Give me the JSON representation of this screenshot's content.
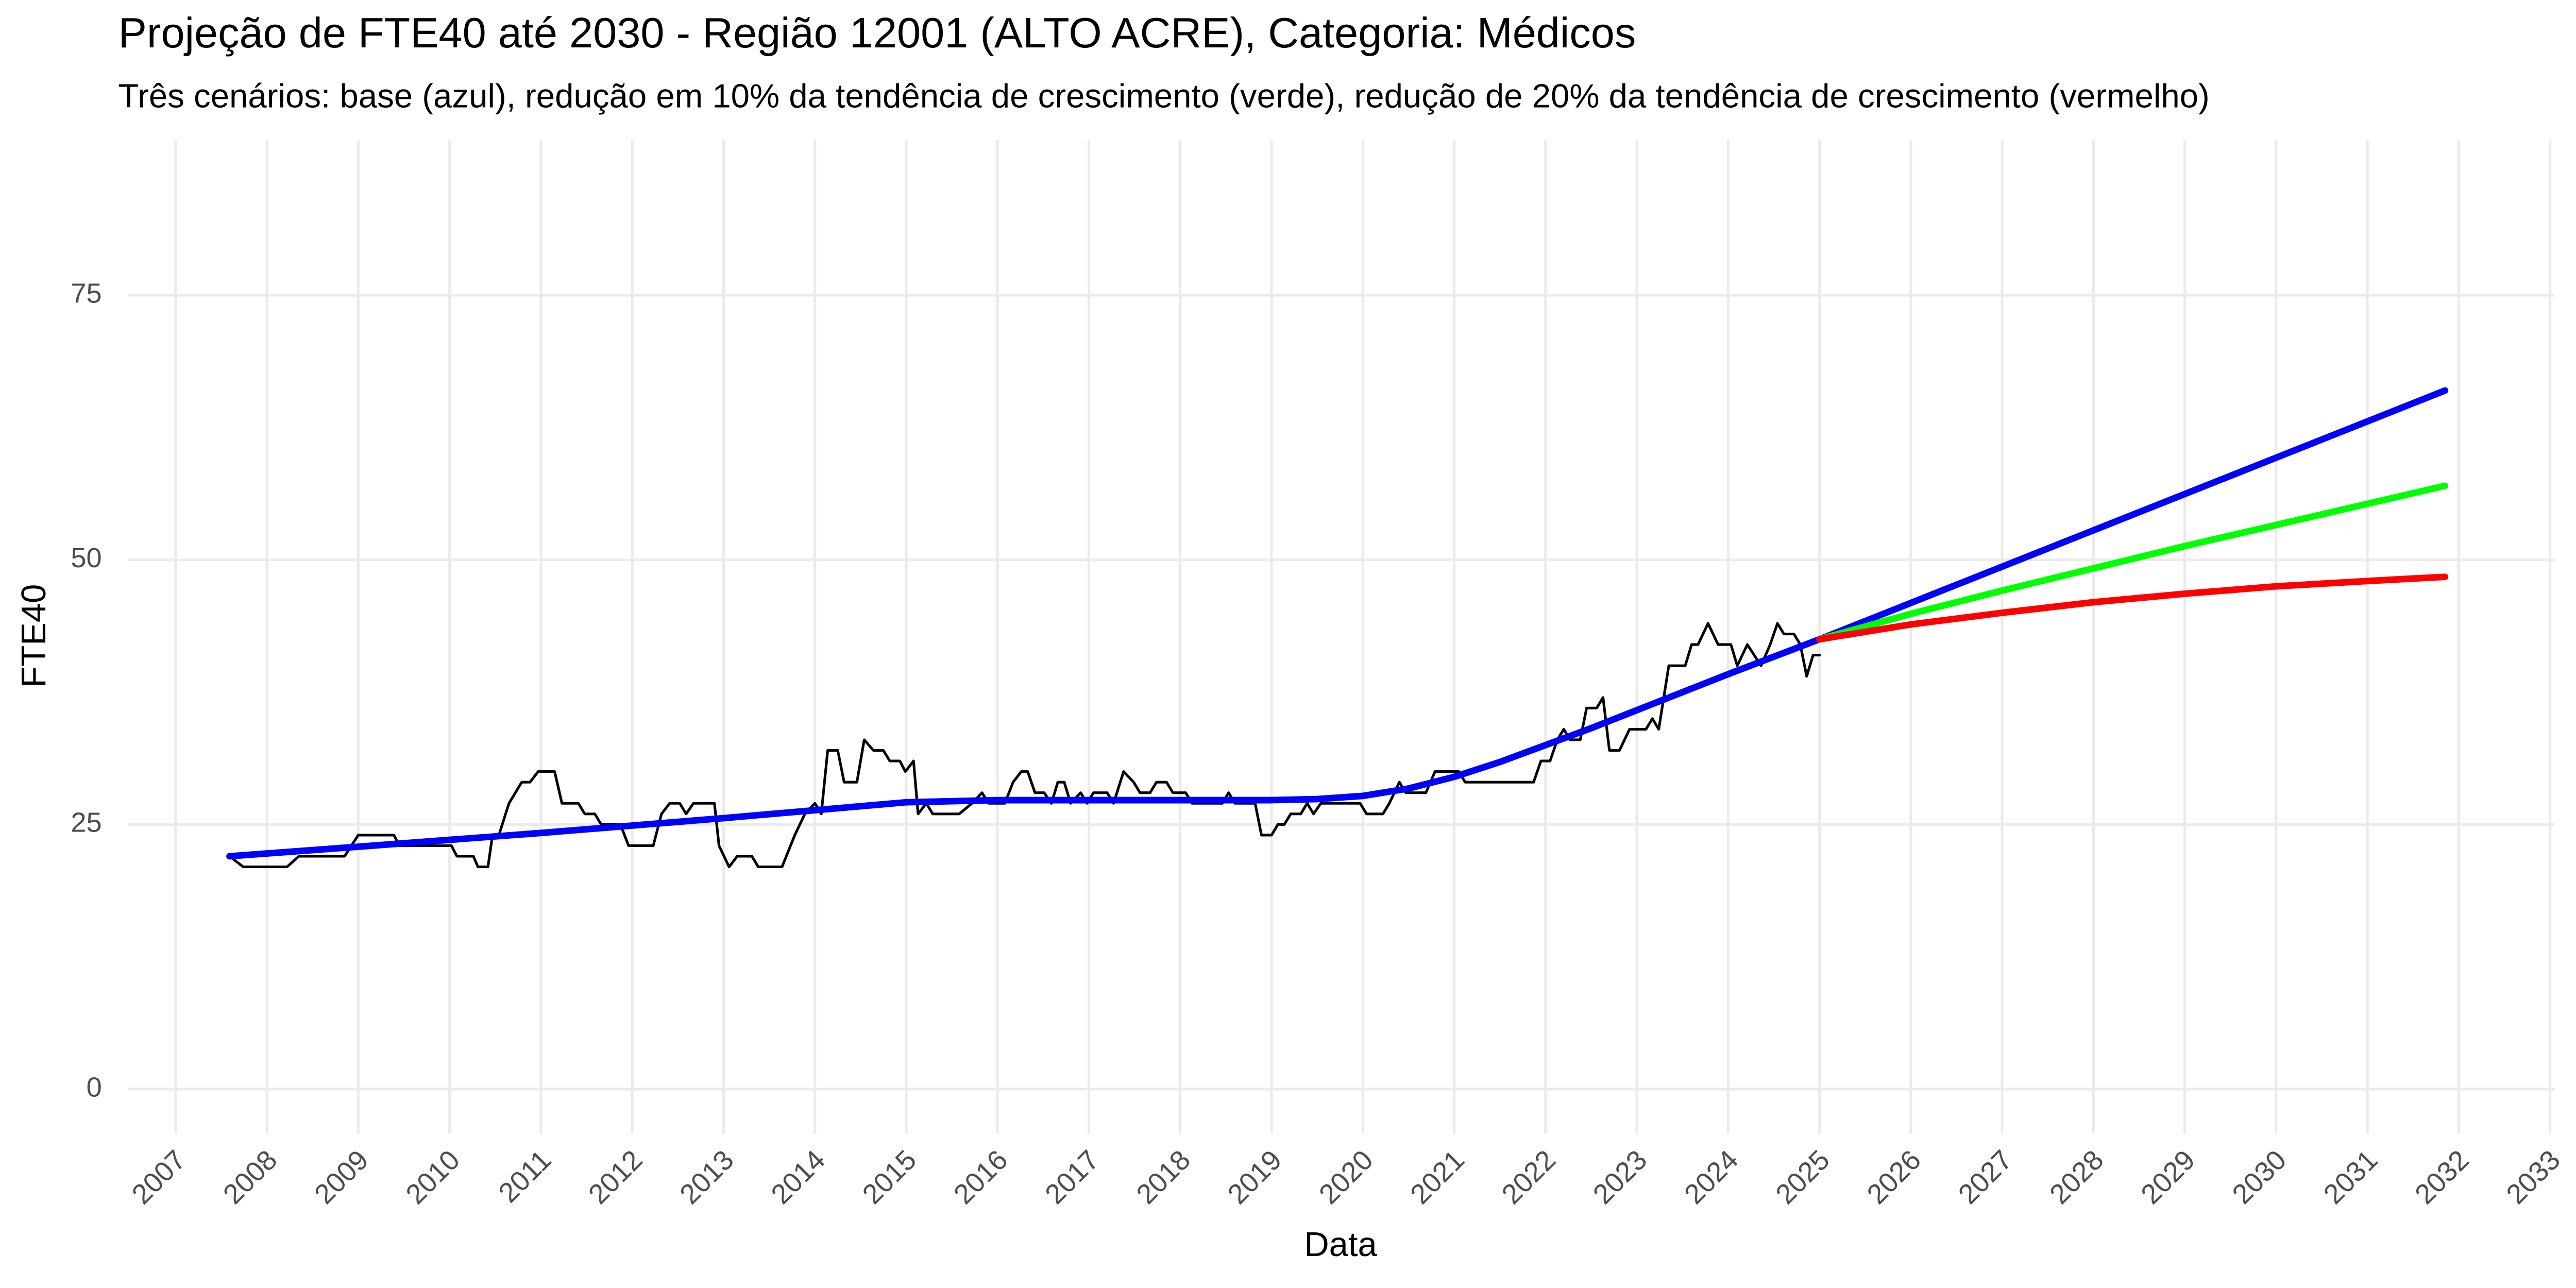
{
  "chart_data": {
    "type": "line",
    "title": "Projeção de FTE40 até 2030 - Região 12001 (ALTO ACRE), Categoria: Médicos",
    "subtitle": "Três cenários: base (azul), redução em 10% da tendência de crescimento (verde), redução de 20% da tendência de crescimento (vermelho)",
    "x_label": "Data",
    "y_label": "FTE40",
    "xlim": [
      2006.48,
      2033.05
    ],
    "xticks": [
      2007,
      2008,
      2009,
      2010,
      2011,
      2012,
      2013,
      2014,
      2015,
      2016,
      2017,
      2018,
      2019,
      2020,
      2021,
      2022,
      2023,
      2024,
      2025,
      2026,
      2027,
      2028,
      2029,
      2030,
      2031,
      2032,
      2033
    ],
    "ylim": [
      -4.2,
      89.7
    ],
    "yticks": [
      0,
      25,
      50,
      75
    ],
    "grid": true,
    "series": [
      {
        "color": "#000000",
        "width": 1.6,
        "x": [
          2007.59,
          2007.74,
          2008.22,
          2008.35,
          2008.85,
          2009.0,
          2009.39,
          2009.45,
          2010.02,
          2010.08,
          2010.26,
          2010.31,
          2010.42,
          2010.47,
          2010.54,
          2010.65,
          2010.79,
          2010.88,
          2010.97,
          2011.15,
          2011.23,
          2011.41,
          2011.48,
          2011.59,
          2011.66,
          2011.87,
          2011.96,
          2012.23,
          2012.32,
          2012.41,
          2012.52,
          2012.59,
          2012.67,
          2012.9,
          2012.95,
          2013.06,
          2013.15,
          2013.31,
          2013.38,
          2013.64,
          2013.78,
          2013.89,
          2014.0,
          2014.07,
          2014.14,
          2014.25,
          2014.32,
          2014.46,
          2014.54,
          2014.64,
          2014.75,
          2014.82,
          2014.93,
          2014.99,
          2015.08,
          2015.13,
          2015.22,
          2015.29,
          2015.58,
          2015.72,
          2015.83,
          2015.9,
          2016.08,
          2016.17,
          2016.26,
          2016.33,
          2016.41,
          2016.51,
          2016.59,
          2016.66,
          2016.73,
          2016.8,
          2016.91,
          2016.98,
          2017.05,
          2017.2,
          2017.27,
          2017.38,
          2017.49,
          2017.56,
          2017.67,
          2017.74,
          2017.85,
          2017.92,
          2018.06,
          2018.13,
          2018.46,
          2018.53,
          2018.6,
          2018.82,
          2018.89,
          2019.0,
          2019.07,
          2019.14,
          2019.21,
          2019.32,
          2019.39,
          2019.46,
          2019.54,
          2019.97,
          2020.04,
          2020.22,
          2020.29,
          2020.4,
          2020.47,
          2020.69,
          2020.79,
          2021.05,
          2021.12,
          2021.87,
          2021.95,
          2022.05,
          2022.13,
          2022.2,
          2022.27,
          2022.38,
          2022.45,
          2022.56,
          2022.63,
          2022.7,
          2022.81,
          2022.92,
          2023.1,
          2023.17,
          2023.24,
          2023.35,
          2023.53,
          2023.6,
          2023.67,
          2023.78,
          2023.89,
          2024.03,
          2024.1,
          2024.21,
          2024.36,
          2024.46,
          2024.54,
          2024.61,
          2024.72,
          2024.79,
          2024.86,
          2024.93,
          2025.0
        ],
        "values": [
          22,
          21,
          21,
          22,
          22,
          24,
          24,
          23,
          23,
          22,
          22,
          21,
          21,
          24,
          24,
          27,
          29,
          29,
          30,
          30,
          27,
          27,
          26,
          26,
          25,
          25,
          23,
          23,
          26,
          27,
          27,
          26,
          27,
          27,
          23,
          21,
          22,
          22,
          21,
          21,
          24,
          26,
          27,
          26,
          32,
          32,
          29,
          29,
          33,
          32,
          32,
          31,
          31,
          30,
          31,
          26,
          27,
          26,
          26,
          27,
          28,
          27,
          27,
          29,
          30,
          30,
          28,
          28,
          27,
          29,
          29,
          27,
          28,
          27,
          28,
          28,
          27,
          30,
          29,
          28,
          28,
          29,
          29,
          28,
          28,
          27,
          27,
          28,
          27,
          27,
          24,
          24,
          25,
          25,
          26,
          26,
          27,
          26,
          27,
          27,
          26,
          26,
          27,
          29,
          28,
          28,
          30,
          30,
          29,
          29,
          31,
          31,
          33,
          34,
          33,
          33,
          36,
          36,
          37,
          32,
          32,
          34,
          34,
          35,
          34,
          40,
          40,
          42,
          42,
          44,
          42,
          42,
          40,
          42,
          40,
          42,
          44,
          43,
          43,
          42,
          39,
          41,
          41
        ]
      },
      {
        "color": "#0000ff",
        "width": 4,
        "x": [
          2007.59,
          2009,
          2011,
          2013,
          2015,
          2016,
          2019,
          2019.5,
          2020,
          2020.5,
          2021,
          2021.5,
          2022,
          2022.5,
          2023,
          2024,
          2025,
          2031.85
        ],
        "values": [
          22.0,
          22.9,
          24.2,
          25.6,
          27.1,
          27.3,
          27.3,
          27.4,
          27.7,
          28.4,
          29.5,
          30.9,
          32.5,
          34.1,
          35.8,
          39.2,
          42.5,
          66.0
        ]
      },
      {
        "color": "#00ff00",
        "width": 4,
        "x": [
          2025,
          2026,
          2027,
          2028,
          2029,
          2030,
          2031,
          2031.85
        ],
        "values": [
          42.5,
          44.9,
          47.1,
          49.2,
          51.3,
          53.3,
          55.3,
          57.0
        ]
      },
      {
        "color": "#ff0000",
        "width": 4,
        "x": [
          2025,
          2026,
          2027,
          2028,
          2029,
          2030,
          2031,
          2031.85
        ],
        "values": [
          42.5,
          43.9,
          45.0,
          46.0,
          46.8,
          47.5,
          48.0,
          48.4
        ]
      }
    ]
  }
}
